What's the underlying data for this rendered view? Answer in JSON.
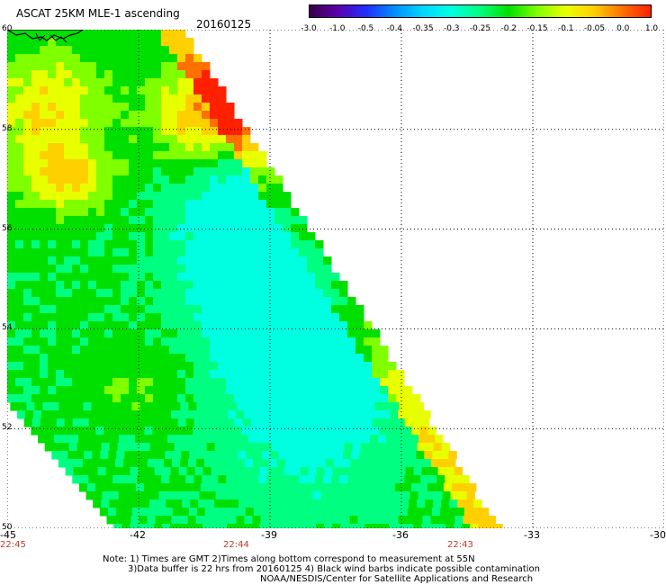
{
  "header": {
    "title": "ASCAT 25KM MLE-1 ascending",
    "date": "20160125"
  },
  "colorbar": {
    "tick_labels": [
      "-3.0",
      "-1.0",
      "-0.5",
      "-0.4",
      "-0.35",
      "-0.3",
      "-0.25",
      "-0.2",
      "-0.15",
      "-0.1",
      "-0.05",
      "0.0",
      "1.0"
    ],
    "colors": [
      "#3a0048",
      "#5a00b0",
      "#2030ff",
      "#0090ff",
      "#00d8ff",
      "#00ffe0",
      "#00ff80",
      "#00e000",
      "#80ff00",
      "#e8ff00",
      "#ffd000",
      "#ff7000",
      "#ff2000"
    ]
  },
  "map": {
    "lat_labels": [
      "60",
      "58",
      "56",
      "54",
      "52",
      "50"
    ],
    "lon_labels": [
      "-45",
      "-42",
      "-39",
      "-36",
      "-33",
      "-30"
    ],
    "time_labels": [
      "22:45",
      "22:44",
      "22:43"
    ],
    "time_label_color": "#c0392b",
    "lat_range": [
      50,
      60
    ],
    "lon_range": [
      -45,
      -30
    ]
  },
  "notes": {
    "line1": "Note: 1) Times are GMT 2)Times along bottom correspond to measurement at 55N",
    "line2": "3)Data buffer is 22 hrs from 20160125 4) Black wind barbs indicate possible contamination",
    "line3": "NOAA/NESDIS/Center for Satellite Applications and Research"
  }
}
